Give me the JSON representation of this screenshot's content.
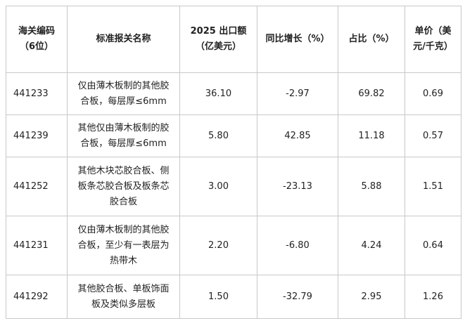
{
  "table": {
    "headers": [
      "海关编码（6位）",
      "标准报关名称",
      "2025 出口额（亿美元）",
      "同比增长（%）",
      "占比（%）",
      "单价（美元/千克）"
    ],
    "rows": [
      [
        "441233",
        "仅由薄木板制的其他胶合板，每层厚≤6mm",
        "36.10",
        "-2.97",
        "69.82",
        "0.69"
      ],
      [
        "441239",
        "其他仅由薄木板制的胶合板，每层厚≤6mm",
        "5.80",
        "42.85",
        "11.18",
        "0.57"
      ],
      [
        "441252",
        "其他木块芯胶合板、侧板条芯胶合板及板条芯胶合板",
        "3.00",
        "-23.13",
        "5.88",
        "1.51"
      ],
      [
        "441231",
        "仅由薄木板制的其他胶合板，至少有一表层为热带木",
        "2.20",
        "-6.80",
        "4.24",
        "0.64"
      ],
      [
        "441292",
        "其他胶合板、单板饰面板及类似多层板",
        "1.50",
        "-32.79",
        "2.95",
        "1.26"
      ]
    ]
  }
}
